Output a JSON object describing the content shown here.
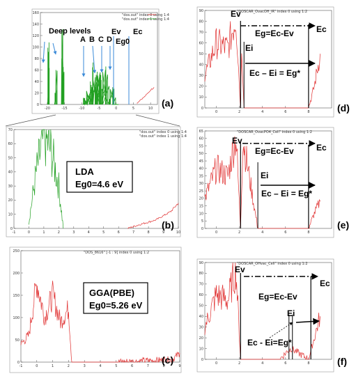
{
  "panels": {
    "a": {
      "label": "(a)",
      "legend": [
        "\"dos.out\" index 0 using 1:4",
        "\"dos.out\" index 1 using 1:4"
      ],
      "xticks": [
        "-20",
        "-15",
        "-10",
        "-5",
        "0",
        "5",
        "10"
      ],
      "yticks": [
        "0",
        "20",
        "40",
        "60",
        "80",
        "100",
        "120",
        "140",
        "160"
      ],
      "annotations": [
        "Deep levels",
        "A",
        "B",
        "C",
        "D",
        "Ev",
        "Eg0",
        "Ec"
      ]
    },
    "b": {
      "label": "(b)",
      "legend": [
        "\"dos.out\" index 0 using 1:4",
        "\"dos.out\" index 1 using 1:4"
      ],
      "xticks": [
        "-1",
        "0",
        "1",
        "2",
        "3",
        "4",
        "5",
        "6",
        "7",
        "8",
        "9",
        "10"
      ],
      "yticks": [
        "0",
        "10",
        "20",
        "30",
        "40",
        "50",
        "60",
        "70"
      ],
      "box_lines": [
        "LDA",
        "Eg0=4.6 eV"
      ]
    },
    "c": {
      "label": "(c)",
      "legend": [
        "\"DOS_8616\" [-1 : 9] index 0 using 1:2"
      ],
      "xticks": [
        "-1",
        "0",
        "1",
        "2",
        "3",
        "4",
        "5",
        "6",
        "7",
        "8",
        "9"
      ],
      "yticks": [
        "0",
        "50",
        "100",
        "150",
        "200",
        "250"
      ],
      "box_lines": [
        "GGA(PBE)",
        "Eg0=5.26 eV"
      ]
    },
    "d": {
      "label": "(d)",
      "legend": [
        "\"DOSCAR_OvacOH_IR\" index 0 using 1:2"
      ],
      "xticks": [
        "0",
        "2",
        "4",
        "6",
        "8"
      ],
      "yticks": [
        "0",
        "10",
        "20",
        "30",
        "40",
        "50",
        "60",
        "70",
        "80",
        "90"
      ],
      "ev": "Ev",
      "ec": "Ec",
      "ei": "Ei",
      "eq1": "Eg=Ec-Ev",
      "eq2": "Ec – Ei = Eg*"
    },
    "e": {
      "label": "(e)",
      "legend": [
        "\"DOSCAR_OvacPO4_Cell\" index 0 using 1:2"
      ],
      "xticks": [
        "0",
        "2",
        "4",
        "6",
        "8"
      ],
      "yticks": [
        "0",
        "5",
        "10",
        "15",
        "20",
        "25",
        "30",
        "35",
        "40",
        "45",
        "50",
        "55",
        "60",
        "65"
      ],
      "ev": "Ev",
      "ec": "Ec",
      "ei": "Ei",
      "eq1": "Eg=Ec-Ev",
      "eq2": "Ec – Ei = Eg*"
    },
    "f": {
      "label": "(f)",
      "legend": [
        "\"DOSCAR_OHvac_Cell\" index 0 using 1:2"
      ],
      "xticks": [
        "0",
        "2",
        "4",
        "6",
        "8"
      ],
      "yticks": [
        "0",
        "10",
        "20",
        "30",
        "40",
        "50",
        "60",
        "70",
        "80",
        "90"
      ],
      "ev": "Ev",
      "ec": "Ec",
      "ei": "Ei",
      "eq1": "Eg=Ec-Ev",
      "eq2": "Ec - Ei=Eg*"
    }
  },
  "colors": {
    "conduction": "#e03030",
    "valence_green": "#22a022",
    "arrow_blue": "#3a8ad8"
  },
  "chart_data": [
    {
      "panel": "a",
      "type": "line",
      "xlim": [
        -22,
        12
      ],
      "ylim": [
        0,
        160
      ],
      "series": [
        {
          "name": "\"dos.out\" index 0 using 1:4",
          "x": [
            -19.5,
            -17.5,
            -15.5,
            -8.5,
            -7.5,
            -6.7,
            -5.5,
            -4.8,
            -3,
            -1,
            0
          ],
          "y": [
            108,
            60,
            131,
            12,
            40,
            73,
            57,
            52,
            66,
            30,
            0
          ]
        },
        {
          "name": "\"dos.out\" index 1 using 1:4",
          "x": [
            6,
            7,
            8,
            9,
            10,
            11
          ],
          "y": [
            2,
            8,
            12,
            18,
            25,
            30
          ]
        }
      ]
    },
    {
      "panel": "b",
      "type": "line",
      "xlim": [
        -1,
        10
      ],
      "ylim": [
        0,
        70
      ],
      "series": [
        {
          "name": "\"dos.out\" index 0 using 1:4",
          "x": [
            0,
            0.5,
            1,
            1.5,
            2,
            2.3
          ],
          "y": [
            5,
            40,
            65,
            55,
            30,
            0
          ]
        },
        {
          "name": "\"dos.out\" index 1 using 1:4",
          "x": [
            6.6,
            7.5,
            8.5,
            9.5,
            10
          ],
          "y": [
            0,
            3,
            6,
            12,
            18
          ]
        }
      ]
    },
    {
      "panel": "c",
      "type": "line",
      "xlim": [
        -1,
        9
      ],
      "ylim": [
        0,
        250
      ],
      "series": [
        {
          "name": "\"DOS_8616\" [-1 : 9] index 0 using 1:2",
          "x": [
            -1,
            -0.5,
            0,
            0.5,
            1,
            1.5,
            2,
            2.2,
            5,
            8.5,
            9
          ],
          "y": [
            40,
            60,
            180,
            100,
            150,
            90,
            120,
            0,
            0,
            5,
            20
          ]
        }
      ]
    },
    {
      "panel": "d",
      "type": "line",
      "xlim": [
        -1,
        10
      ],
      "ylim": [
        0,
        90
      ],
      "series": [
        {
          "name": "\"DOSCAR_OvacOH_IR\" index 0 using 1:2",
          "x": [
            -1,
            0,
            1,
            1.7,
            2.1,
            2.2,
            2.4,
            5,
            8,
            8.5,
            9
          ],
          "y": [
            30,
            60,
            55,
            85,
            0,
            60,
            0,
            0,
            0,
            20,
            50
          ]
        }
      ]
    },
    {
      "panel": "e",
      "type": "line",
      "xlim": [
        -1,
        10
      ],
      "ylim": [
        0,
        65
      ],
      "series": [
        {
          "name": "\"DOSCAR_OvacPO4_Cell\" index 0 using 1:2",
          "x": [
            -1,
            0,
            1,
            1.7,
            2.1,
            2.3,
            3.6,
            5,
            8,
            8.5,
            9
          ],
          "y": [
            20,
            40,
            35,
            62,
            0,
            60,
            0,
            0,
            0,
            10,
            18
          ]
        }
      ]
    },
    {
      "panel": "f",
      "type": "line",
      "xlim": [
        -1,
        10
      ],
      "ylim": [
        0,
        90
      ],
      "series": [
        {
          "name": "\"DOSCAR_OHvac_Cell\" index 0 using 1:2",
          "x": [
            -1,
            0,
            1,
            1.7,
            2.1,
            5.5,
            6.2,
            6.5,
            8,
            9
          ],
          "y": [
            30,
            60,
            55,
            85,
            0,
            0,
            8,
            10,
            0,
            40
          ]
        }
      ]
    }
  ]
}
